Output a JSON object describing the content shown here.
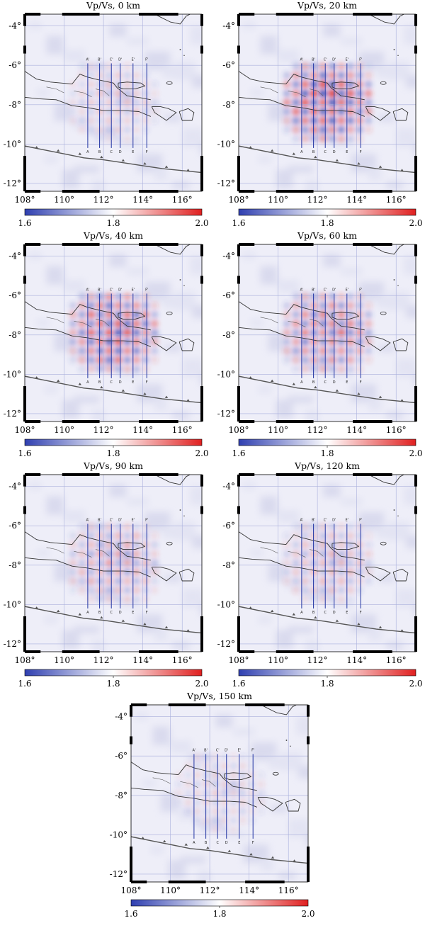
{
  "figure": {
    "colorbar": {
      "min_label": "1.6",
      "mid_label": "1.8",
      "max_label": "2.0",
      "colors": [
        "#2f3fb0",
        "#ffffff",
        "#e02020"
      ]
    },
    "lon_ticks": [
      "108°",
      "110°",
      "112°",
      "114°",
      "116°"
    ],
    "lat_ticks": [
      "-4°",
      "-6°",
      "-8°",
      "-10°",
      "-12°"
    ],
    "profile_labels_top": [
      "A'",
      "B'",
      "C'",
      "D'",
      "E'",
      "F'"
    ],
    "profile_labels_bottom": [
      "A",
      "B",
      "C",
      "D",
      "E",
      "F"
    ],
    "panels": [
      {
        "title": "Vp/Vs, 0 km",
        "depth_km": 0,
        "recovery": 0.25
      },
      {
        "title": "Vp/Vs, 20 km",
        "depth_km": 20,
        "recovery": 0.95
      },
      {
        "title": "Vp/Vs, 40 km",
        "depth_km": 40,
        "recovery": 0.85
      },
      {
        "title": "Vp/Vs, 60 km",
        "depth_km": 60,
        "recovery": 0.7
      },
      {
        "title": "Vp/Vs, 90 km",
        "depth_km": 90,
        "recovery": 0.45
      },
      {
        "title": "Vp/Vs, 120 km",
        "depth_km": 120,
        "recovery": 0.35
      },
      {
        "title": "Vp/Vs, 150 km",
        "depth_km": 150,
        "recovery": 0.2
      }
    ]
  }
}
